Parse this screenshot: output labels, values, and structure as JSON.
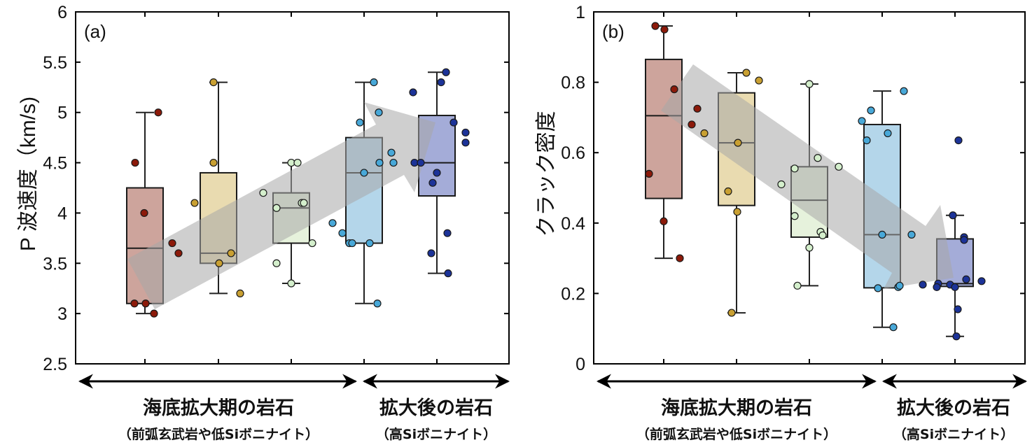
{
  "chart_data": [
    {
      "type": "box",
      "panel_label": "(a)",
      "ylabel": "P 波速度（km/s)",
      "ylim": [
        2.5,
        6
      ],
      "yticks": [
        "2.5",
        "3",
        "3.5",
        "4",
        "4.5",
        "5",
        "5.5",
        "6"
      ],
      "trend_arrow": "increasing",
      "groups": [
        {
          "color": "#8c1a0a",
          "fill": "#cda49c",
          "q1": 3.1,
          "median": 3.65,
          "q3": 4.25,
          "whisker_low": 3.0,
          "whisker_high": 5.0,
          "points": [
            5.0,
            4.5,
            4.0,
            3.7,
            3.6,
            3.1,
            3.1,
            3.0
          ]
        },
        {
          "color": "#c9a032",
          "fill": "#e9dbb0",
          "q1": 3.5,
          "median": 3.6,
          "q3": 4.4,
          "whisker_low": 3.2,
          "whisker_high": 5.3,
          "points": [
            5.3,
            4.5,
            4.1,
            3.6,
            3.5,
            3.2
          ]
        },
        {
          "color": "#d4efcc",
          "fill": "#e6f2dc",
          "q1": 3.7,
          "median": 4.05,
          "q3": 4.2,
          "whisker_low": 3.3,
          "whisker_high": 4.5,
          "points": [
            4.5,
            4.5,
            4.2,
            4.05,
            4.1,
            4.1,
            3.5,
            3.3,
            3.7
          ]
        },
        {
          "color": "#48a8d8",
          "fill": "#b4d6ea",
          "q1": 3.7,
          "median": 4.4,
          "q3": 4.75,
          "whisker_low": 3.1,
          "whisker_high": 5.3,
          "points": [
            5.3,
            5.0,
            4.9,
            4.6,
            4.5,
            4.5,
            4.4,
            3.9,
            3.8,
            3.7,
            3.7,
            3.7,
            3.1
          ]
        },
        {
          "color": "#1c3398",
          "fill": "#a4acd8",
          "q1": 4.17,
          "median": 4.5,
          "q3": 4.97,
          "whisker_low": 3.4,
          "whisker_high": 5.4,
          "points": [
            5.4,
            5.3,
            5.2,
            4.9,
            4.8,
            4.7,
            4.5,
            4.5,
            4.4,
            4.3,
            3.8,
            3.6,
            3.4
          ]
        }
      ]
    },
    {
      "type": "box",
      "panel_label": "(b)",
      "ylabel": "クラック密度",
      "ylim": [
        0,
        1
      ],
      "yticks": [
        "0",
        "0.2",
        "0.4",
        "0.6",
        "0.8",
        "1"
      ],
      "trend_arrow": "decreasing",
      "groups": [
        {
          "color": "#8c1a0a",
          "fill": "#cda49c",
          "q1": 0.47,
          "median": 0.705,
          "q3": 0.865,
          "whisker_low": 0.3,
          "whisker_high": 0.96,
          "points": [
            0.96,
            0.95,
            0.78,
            0.725,
            0.68,
            0.54,
            0.405,
            0.3
          ]
        },
        {
          "color": "#c9a032",
          "fill": "#e9dbb0",
          "q1": 0.45,
          "median": 0.628,
          "q3": 0.77,
          "whisker_low": 0.145,
          "whisker_high": 0.827,
          "points": [
            0.827,
            0.805,
            0.655,
            0.628,
            0.49,
            0.432,
            0.145
          ]
        },
        {
          "color": "#d4efcc",
          "fill": "#e6f2dc",
          "q1": 0.36,
          "median": 0.465,
          "q3": 0.56,
          "whisker_low": 0.222,
          "whisker_high": 0.795,
          "points": [
            0.795,
            0.585,
            0.56,
            0.555,
            0.51,
            0.42,
            0.375,
            0.365,
            0.33,
            0.222
          ]
        },
        {
          "color": "#48a8d8",
          "fill": "#b4d6ea",
          "q1": 0.216,
          "median": 0.367,
          "q3": 0.68,
          "whisker_low": 0.104,
          "whisker_high": 0.775,
          "points": [
            0.775,
            0.72,
            0.69,
            0.655,
            0.635,
            0.367,
            0.367,
            0.215,
            0.218,
            0.222,
            0.104
          ]
        },
        {
          "color": "#1c3398",
          "fill": "#a4acd8",
          "q1": 0.22,
          "median": 0.228,
          "q3": 0.355,
          "whisker_low": 0.078,
          "whisker_high": 0.422,
          "points": [
            0.635,
            0.422,
            0.36,
            0.352,
            0.24,
            0.235,
            0.225,
            0.228,
            0.225,
            0.218,
            0.218,
            0.155,
            0.078
          ]
        }
      ]
    }
  ],
  "captions": {
    "left_main": "海底拡大期の岩石",
    "left_sub": "（前弧玄武岩や低Siボニナイト）",
    "right_main": "拡大後の岩石",
    "right_sub": "（高Siボニナイト）"
  }
}
